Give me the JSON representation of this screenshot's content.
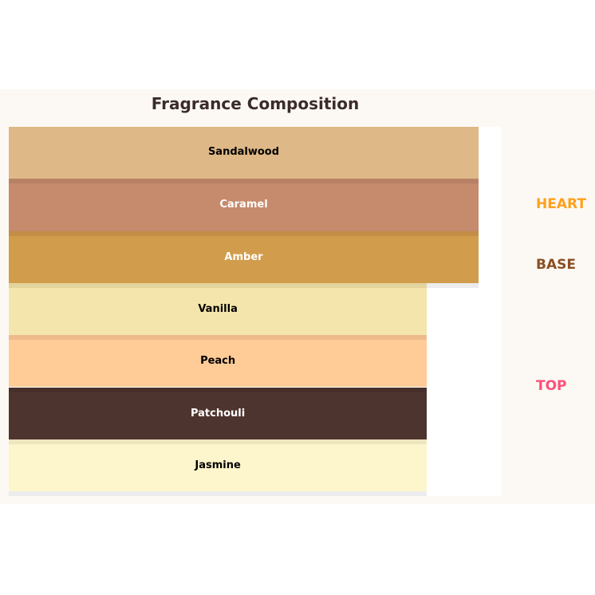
{
  "chart_data": {
    "type": "bar",
    "orientation": "horizontal",
    "title": "Fragrance Composition",
    "categories": [
      "Sandalwood",
      "Caramel",
      "Amber",
      "Vanilla",
      "Peach",
      "Patchouli",
      "Jasmine"
    ],
    "relative_values": [
      1.0,
      1.0,
      1.0,
      0.89,
      0.89,
      0.89,
      0.89
    ],
    "bars": [
      {
        "label": "Sandalwood",
        "color": "#deb887",
        "strip": "#deb887",
        "text_color": "#000000"
      },
      {
        "label": "Caramel",
        "color": "#c68a6c",
        "strip": "#b88065",
        "text_color": "#ffffff"
      },
      {
        "label": "Amber",
        "color": "#d19c4c",
        "strip": "#c38e45",
        "text_color": "#ffffff"
      },
      {
        "label": "Vanilla",
        "color": "#f3e5ab",
        "strip": "#e3d39d",
        "text_color": "#000000"
      },
      {
        "label": "Peach",
        "color": "#ffcb97",
        "strip": "#efbb8c",
        "text_color": "#000000"
      },
      {
        "label": "Patchouli",
        "color": "#4e342e",
        "strip": "#47302b",
        "text_color": "#ffffff"
      },
      {
        "label": "Jasmine",
        "color": "#fdf5cc",
        "strip": "#ede6bf",
        "text_color": "#000000"
      }
    ],
    "legend": [
      {
        "label": "HEART",
        "color": "#ffa01c"
      },
      {
        "label": "BASE",
        "color": "#8b4f24"
      },
      {
        "label": "TOP",
        "color": "#ff4f7b"
      }
    ],
    "grid": false,
    "legend_placement": "right"
  }
}
